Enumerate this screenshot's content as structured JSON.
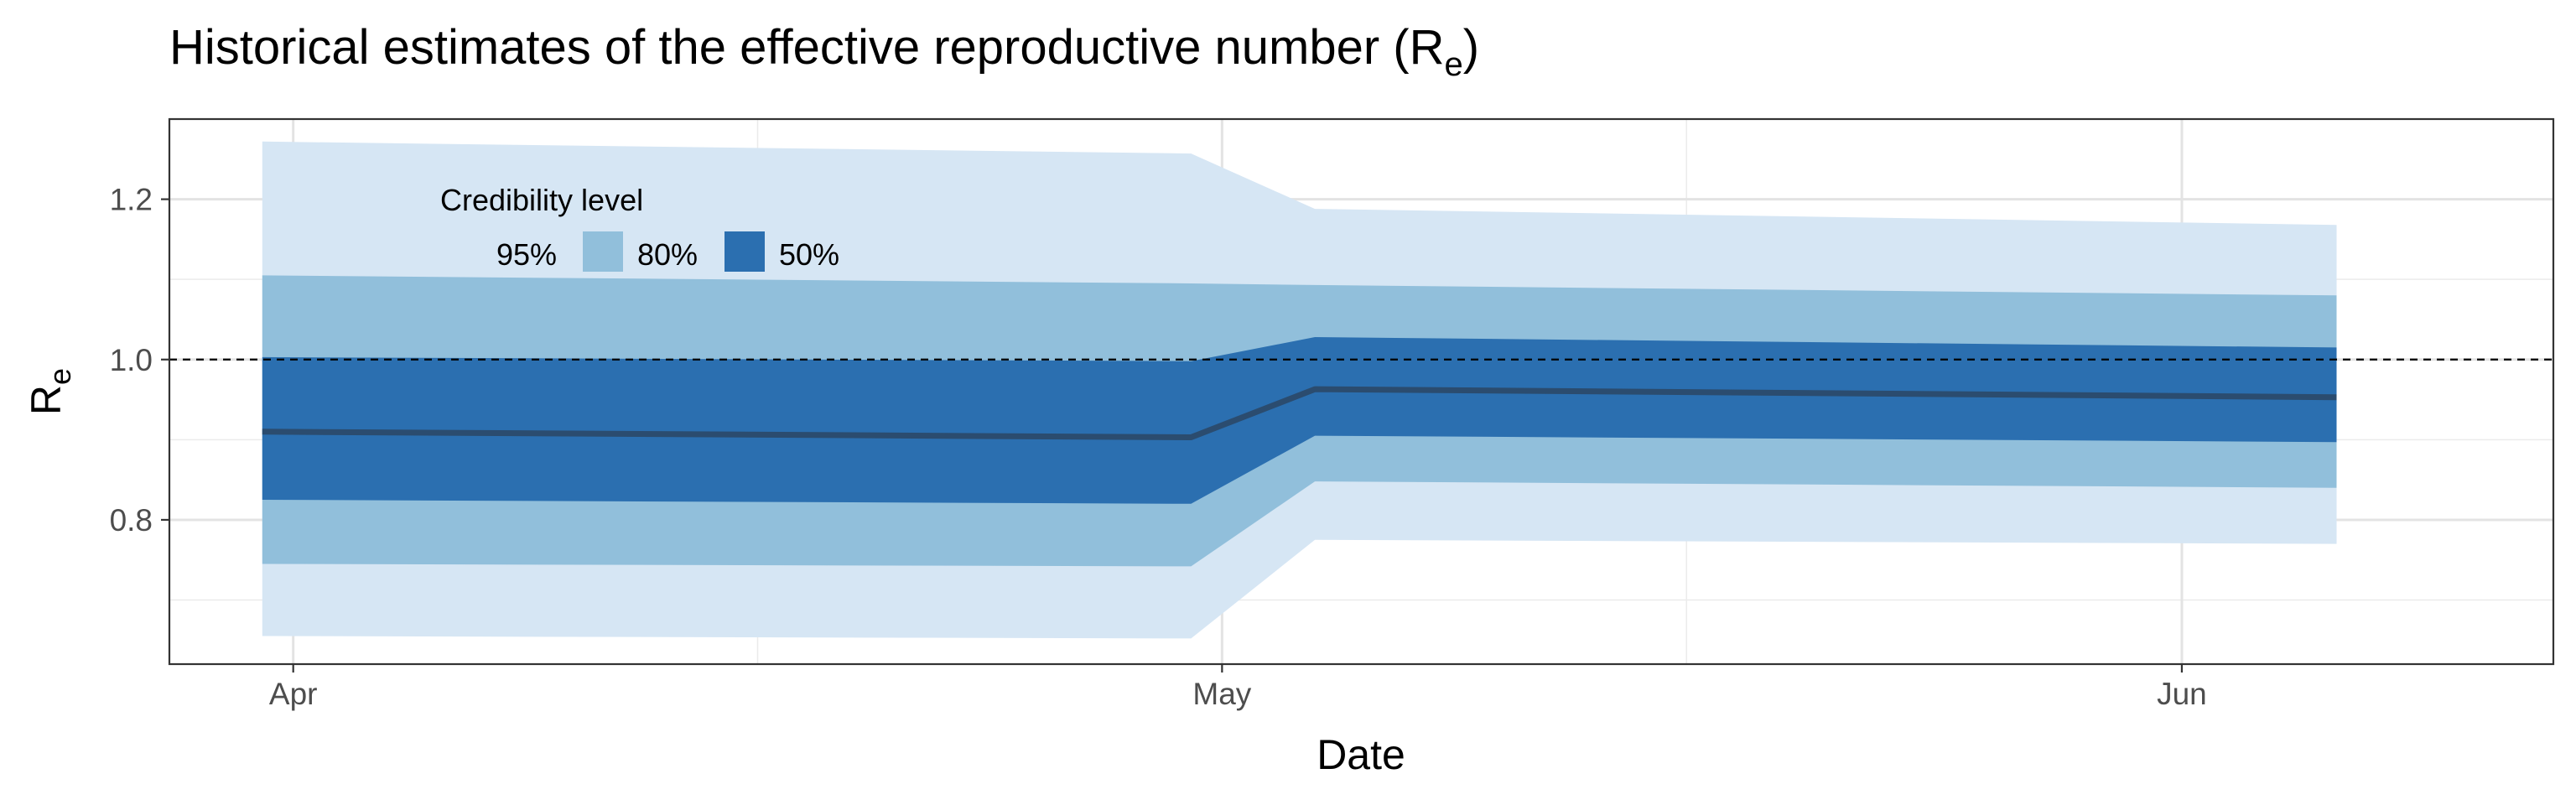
{
  "chart_data": {
    "type": "area",
    "title": "Historical estimates of the effective reproductive number (R",
    "title_sub": "e",
    "title_close": ")",
    "xlabel": "Date",
    "ylabel": "R",
    "ylabel_sub": "e",
    "x": [
      "2021-03-31",
      "2021-04-30",
      "2021-05-04",
      "2021-06-06"
    ],
    "xlim": [
      "2021-03-28",
      "2021-06-13"
    ],
    "x_ticks": [
      {
        "date": "2021-04-01",
        "label": "Apr"
      },
      {
        "date": "2021-05-01",
        "label": "May"
      },
      {
        "date": "2021-06-01",
        "label": "Jun"
      }
    ],
    "x_minor_ticks": [
      "2021-04-16",
      "2021-05-16"
    ],
    "ylim": [
      0.62,
      1.3
    ],
    "y_ticks": [
      {
        "value": 0.8,
        "label": "0.8"
      },
      {
        "value": 1.0,
        "label": "1.0"
      },
      {
        "value": 1.2,
        "label": "1.2"
      }
    ],
    "y_minor_ticks": [
      0.7,
      0.9,
      1.1
    ],
    "reference_line": {
      "y": 1.0,
      "style": "dashed"
    },
    "grid": true,
    "median": [
      0.91,
      0.903,
      0.963,
      0.953
    ],
    "bands": [
      {
        "name": "95%",
        "color": "#d6e6f4",
        "lower": [
          0.655,
          0.652,
          0.775,
          0.77
        ],
        "upper": [
          1.272,
          1.257,
          1.188,
          1.168
        ]
      },
      {
        "name": "80%",
        "color": "#91bfdb",
        "lower": [
          0.745,
          0.742,
          0.848,
          0.84
        ],
        "upper": [
          1.105,
          1.095,
          1.093,
          1.08
        ]
      },
      {
        "name": "50%",
        "color": "#2b6fb0",
        "lower": [
          0.825,
          0.82,
          0.905,
          0.897
        ],
        "upper": [
          1.003,
          0.998,
          1.028,
          1.015
        ]
      }
    ],
    "median_color": "#2b4c6f",
    "legend": {
      "title": "Credibility level",
      "placement": "top-left",
      "entries": [
        "95%",
        "80%",
        "50%"
      ]
    }
  }
}
